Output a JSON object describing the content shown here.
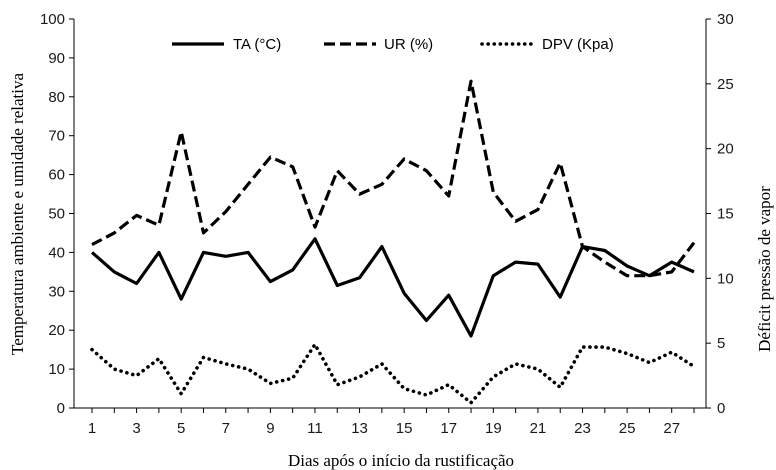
{
  "chart_data": {
    "type": "line",
    "xlabel": "Dias após o início da rustificação",
    "ylabel_left": "Temperatura ambiente e umidade relativa",
    "ylabel_right": "Déficit pressão de vapor",
    "x": [
      1,
      2,
      3,
      4,
      5,
      6,
      7,
      8,
      9,
      10,
      11,
      12,
      13,
      14,
      15,
      16,
      17,
      18,
      19,
      20,
      21,
      22,
      23,
      24,
      25,
      26,
      27,
      28
    ],
    "x_ticks": [
      "1",
      "3",
      "5",
      "7",
      "9",
      "11",
      "13",
      "15",
      "17",
      "19",
      "21",
      "23",
      "25",
      "27"
    ],
    "x_range": [
      1,
      28
    ],
    "ylim_left": [
      0,
      100
    ],
    "ylim_right": [
      0,
      30
    ],
    "yticks_left": [
      "0",
      "10",
      "20",
      "30",
      "40",
      "50",
      "60",
      "70",
      "80",
      "90",
      "100"
    ],
    "yticks_right": [
      "0",
      "5",
      "10",
      "15",
      "20",
      "25",
      "30"
    ],
    "legend_position": "top",
    "series": [
      {
        "name": "TA (°C)",
        "axis": "left",
        "style": "solid",
        "values": [
          40,
          35,
          32,
          40,
          28,
          40,
          39,
          40,
          32.5,
          35.5,
          43.5,
          31.5,
          33.5,
          41.5,
          29.5,
          22.5,
          29,
          18.5,
          34,
          37.5,
          37,
          28.5,
          41.5,
          40.5,
          36.5,
          34,
          37.5,
          35
        ]
      },
      {
        "name": "UR (%)",
        "axis": "left",
        "style": "dashed",
        "values": [
          42,
          45,
          49.5,
          47,
          71,
          45,
          50.5,
          57.5,
          64.5,
          62,
          46.5,
          61,
          55,
          57.5,
          64,
          61,
          54.5,
          84,
          55.5,
          48,
          51,
          63,
          41.5,
          37.5,
          34,
          34,
          35,
          42.5
        ]
      },
      {
        "name": "DPV (Kpa)",
        "axis": "right",
        "style": "dotted",
        "values": [
          4.5,
          3,
          2.5,
          3.8,
          1.1,
          3.9,
          3.4,
          3.0,
          1.9,
          2.3,
          4.9,
          1.8,
          2.4,
          3.4,
          1.5,
          1.0,
          1.8,
          0.4,
          2.4,
          3.4,
          3.0,
          1.6,
          4.7,
          4.7,
          4.2,
          3.5,
          4.3,
          3.2
        ]
      }
    ]
  }
}
